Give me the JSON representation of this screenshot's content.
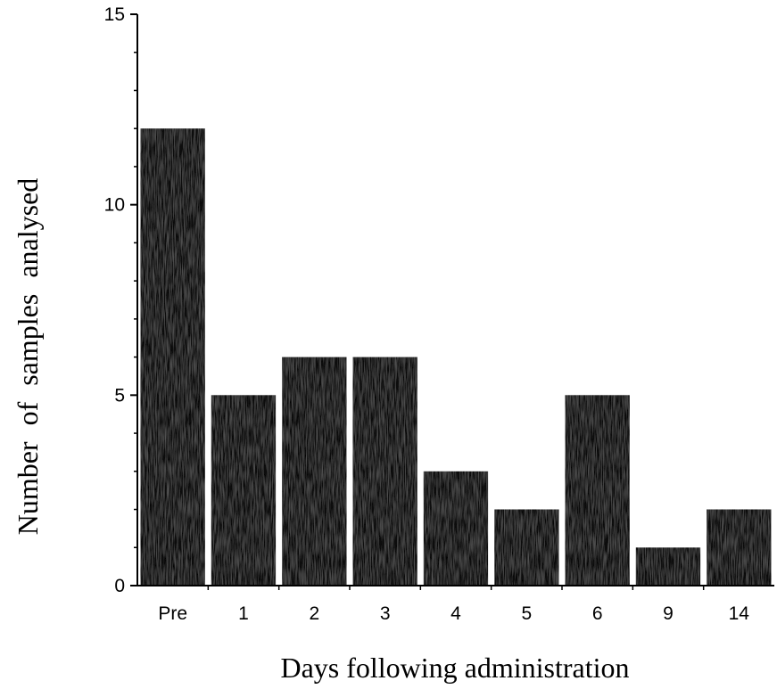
{
  "chart_data": {
    "type": "bar",
    "categories": [
      "Pre",
      "1",
      "2",
      "3",
      "4",
      "5",
      "6",
      "9",
      "14"
    ],
    "values": [
      12,
      5,
      6,
      6,
      3,
      2,
      5,
      1,
      2
    ],
    "xlabel": "Days following administration",
    "ylabel": "Number of samples analysed",
    "ylim": [
      0,
      15
    ],
    "yticks": [
      0,
      5,
      10,
      15
    ],
    "y_minor_step": 1,
    "grid": false,
    "bar_color": "#0a0a0a",
    "axis_color": "#000000"
  }
}
